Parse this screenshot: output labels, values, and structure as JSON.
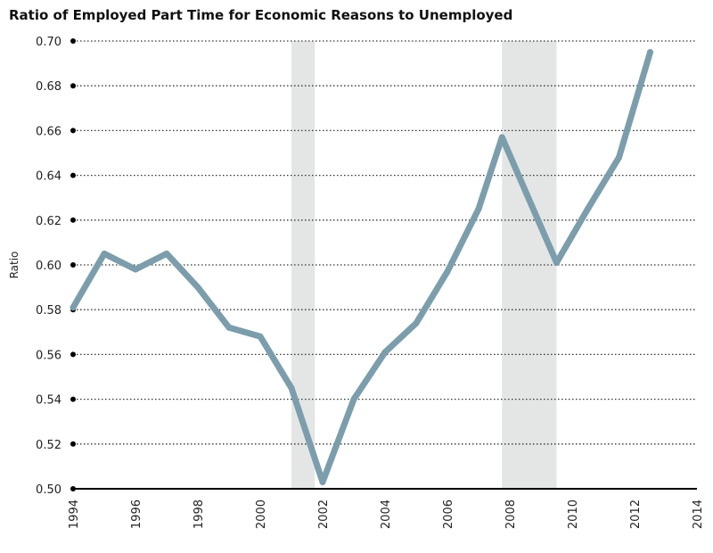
{
  "chart_data": {
    "type": "line",
    "title": "Ratio of Employed Part Time for Economic Reasons to Unemployed",
    "ylabel": "Ratio",
    "xlabel": "",
    "xlim": [
      1994,
      2014
    ],
    "ylim": [
      0.5,
      0.7
    ],
    "x_ticks": [
      "1994",
      "1996",
      "1998",
      "2000",
      "2002",
      "2004",
      "2006",
      "2008",
      "2010",
      "2012",
      "2014"
    ],
    "y_ticks": [
      "0.50",
      "0.52",
      "0.54",
      "0.56",
      "0.58",
      "0.60",
      "0.62",
      "0.64",
      "0.66",
      "0.68",
      "0.70"
    ],
    "grid": "horizontal dotted",
    "recession_periods": [
      [
        2001.0,
        2001.75
      ],
      [
        2007.75,
        2009.5
      ]
    ],
    "series": [
      {
        "color": "#7c9dac",
        "x": [
          1994.0,
          1995.0,
          1996.0,
          1997.0,
          1998.0,
          1999.0,
          2000.0,
          2001.0,
          2002.0,
          2003.0,
          2004.0,
          2005.0,
          2006.0,
          2007.0,
          2007.75,
          2008.5,
          2009.5,
          2010.5,
          2011.5,
          2012.5
        ],
        "values": [
          0.581,
          0.605,
          0.598,
          0.605,
          0.59,
          0.572,
          0.568,
          0.545,
          0.503,
          0.54,
          0.561,
          0.574,
          0.597,
          0.625,
          0.657,
          0.633,
          0.601,
          0.625,
          0.648,
          0.695
        ]
      }
    ]
  }
}
